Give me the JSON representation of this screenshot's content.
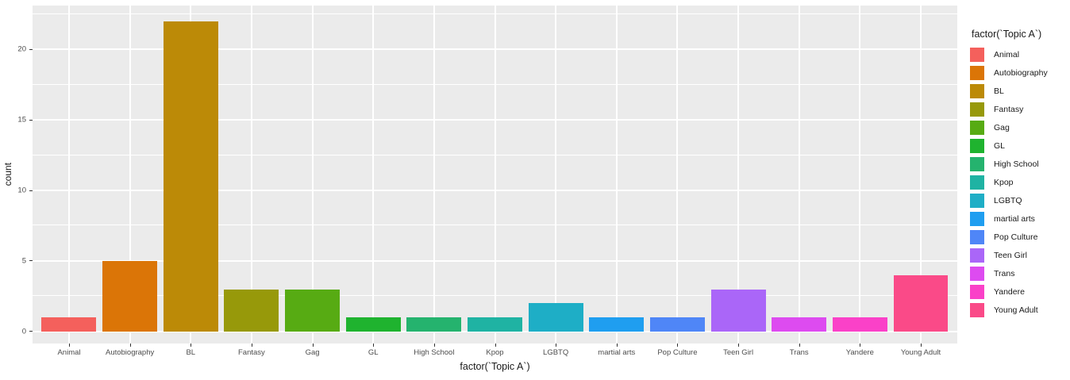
{
  "chart_data": {
    "type": "bar",
    "title": "",
    "xlabel": "factor(`Topic A`)",
    "ylabel": "count",
    "legend_title": "factor(`Topic A`)",
    "legend_position": "right",
    "grid": true,
    "panel_background": "#EBEBEB",
    "gridline_color": "#FFFFFF",
    "categories": [
      "Animal",
      "Autobiography",
      "BL",
      "Fantasy",
      "Gag",
      "GL",
      "High School",
      "Kpop",
      "LGBTQ",
      "martial arts",
      "Pop Culture",
      "Teen Girl",
      "Trans",
      "Yandere",
      "Young Adult"
    ],
    "values": [
      1,
      5,
      22,
      3,
      3,
      1,
      1,
      1,
      2,
      1,
      1,
      3,
      1,
      1,
      4
    ],
    "colors": [
      "#F4605C",
      "#DB7507",
      "#BC8A07",
      "#97990A",
      "#57AB13",
      "#1FB32F",
      "#25B36E",
      "#1FB3A3",
      "#1EAEC6",
      "#1F9EF0",
      "#4F86F7",
      "#AA66F8",
      "#DD4BF0",
      "#FA41C8",
      "#FA4A88"
    ],
    "ylim": [
      -0.85,
      23.1
    ],
    "yticks": [
      0,
      5,
      10,
      15,
      20
    ],
    "yticks_minor": [
      2.5,
      7.5,
      12.5,
      17.5,
      22.5
    ],
    "bar_width": 0.9,
    "axis_text_color": "#4D4D4D",
    "tick_color": "#333333"
  }
}
